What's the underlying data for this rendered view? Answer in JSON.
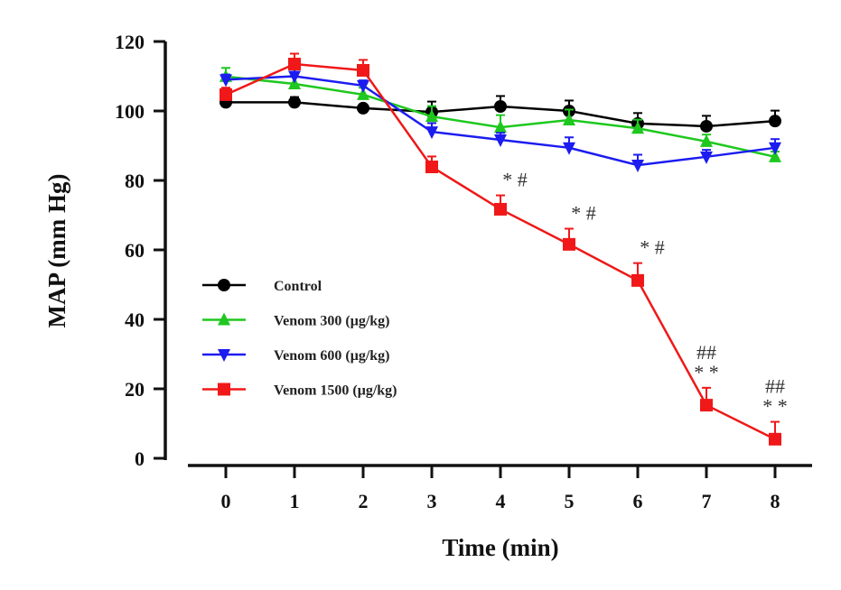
{
  "chart_data": {
    "type": "line",
    "title": "",
    "xlabel": "Time (min)",
    "ylabel": "MAP (mm Hg)",
    "x": [
      0,
      1,
      2,
      3,
      4,
      5,
      6,
      7,
      8
    ],
    "xticks": [
      "0",
      "1",
      "2",
      "3",
      "4",
      "5",
      "6",
      "7",
      "8"
    ],
    "xlim": [
      0,
      8
    ],
    "yticks": [
      "0",
      "20",
      "40",
      "60",
      "80",
      "100",
      "120"
    ],
    "ylim": [
      0,
      120
    ],
    "grid": false,
    "legend_position": "center-left",
    "series": [
      {
        "name": "Control",
        "color": "#000000",
        "marker": "circle",
        "values": [
          102.5,
          102.5,
          100.8,
          99.7,
          101.3,
          100.0,
          96.4,
          95.6,
          97.1
        ],
        "errors": [
          1.0,
          1.5,
          1.0,
          3.0,
          3.0,
          3.0,
          3.0,
          3.0,
          3.0
        ]
      },
      {
        "name": "Venom 300 (μg/kg)",
        "color": "#1ec81e",
        "marker": "triangle-up",
        "values": [
          109.9,
          107.8,
          104.7,
          98.4,
          95.3,
          97.4,
          95.0,
          91.2,
          86.8
        ],
        "errors": [
          2.5,
          2.0,
          2.0,
          3.0,
          3.5,
          3.0,
          2.5,
          2.0,
          1.5
        ]
      },
      {
        "name": "Venom 600 (μg/kg)",
        "color": "#1c1cf0",
        "marker": "triangle-down",
        "values": [
          109.0,
          110.0,
          107.3,
          94.0,
          91.7,
          89.4,
          84.4,
          86.8,
          89.4
        ],
        "errors": [
          1.5,
          2.0,
          1.5,
          2.5,
          2.0,
          3.0,
          3.0,
          2.0,
          2.5
        ]
      },
      {
        "name": "Venom 1500 (μg/kg)",
        "color": "#f01818",
        "marker": "square",
        "values": [
          104.7,
          113.5,
          111.7,
          83.9,
          71.7,
          61.6,
          51.2,
          15.3,
          5.5
        ],
        "errors": [
          2.0,
          3.0,
          3.0,
          3.0,
          4.0,
          4.5,
          5.0,
          5.0,
          5.0
        ]
      }
    ],
    "annotations": [
      {
        "x": 4,
        "lines": [
          "* #"
        ]
      },
      {
        "x": 5,
        "lines": [
          "* #"
        ]
      },
      {
        "x": 6,
        "lines": [
          "* #"
        ]
      },
      {
        "x": 7,
        "lines": [
          "##",
          "* *"
        ]
      },
      {
        "x": 8,
        "lines": [
          "##",
          "* *"
        ]
      }
    ]
  }
}
